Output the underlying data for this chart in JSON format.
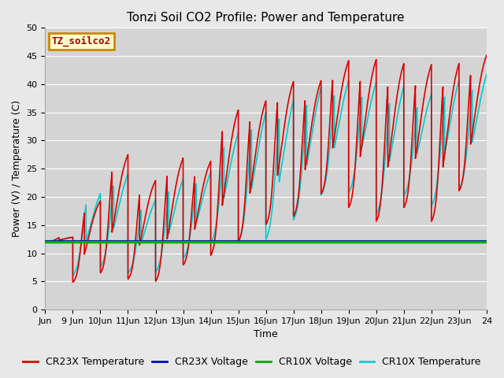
{
  "title": "Tonzi Soil CO2 Profile: Power and Temperature",
  "xlabel": "Time",
  "ylabel": "Power (V) / Temperature (C)",
  "ylim": [
    0,
    50
  ],
  "xlim_days": [
    8,
    24
  ],
  "xtick_days": [
    8,
    9,
    10,
    11,
    12,
    13,
    14,
    15,
    16,
    17,
    18,
    19,
    20,
    21,
    22,
    23,
    24
  ],
  "xtick_labels": [
    "Jun",
    "9 Jun",
    "10Jun",
    "11Jun",
    "12Jun",
    "13Jun",
    "14Jun",
    "15Jun",
    "16Jun",
    "17Jun",
    "18Jun",
    "19Jun",
    "20Jun",
    "21Jun",
    "22Jun",
    "23Jun",
    "24"
  ],
  "background_color": "#e8e8e8",
  "plot_bg_color": "#d4d4d4",
  "cr23x_temp_color": "#dd0000",
  "cr23x_volt_color": "#0000cc",
  "cr10x_volt_color": "#00aa00",
  "cr10x_temp_color": "#00cccc",
  "legend_label_box_color": "#ffffcc",
  "legend_label_box_edge": "#cc8800",
  "legend_label_text": "TZ_soilco2",
  "cr23x_voltage_value": 12.0,
  "cr10x_voltage_value": 12.0,
  "title_fontsize": 11,
  "axis_fontsize": 9,
  "tick_fontsize": 8,
  "legend_fontsize": 9,
  "yticks": [
    0,
    5,
    10,
    15,
    20,
    25,
    30,
    35,
    40,
    45,
    50
  ],
  "grid_color": "#bbbbbb",
  "linewidth": 1.2
}
